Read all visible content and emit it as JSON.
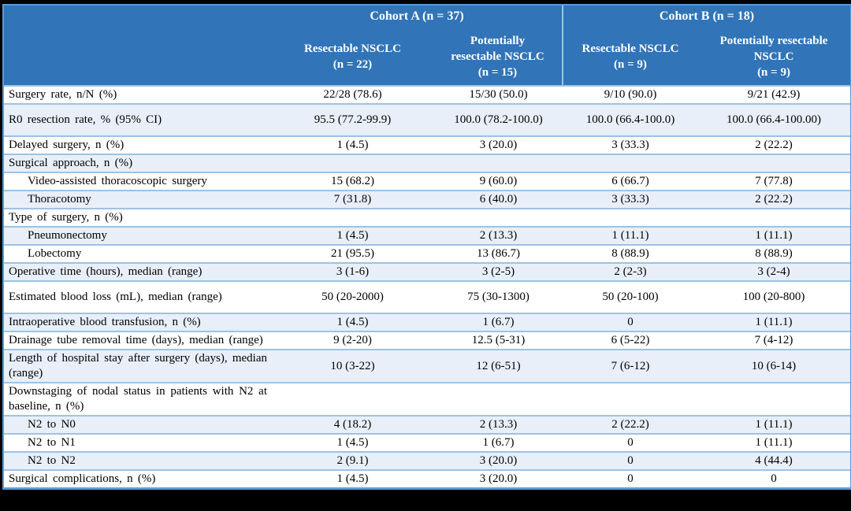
{
  "table": {
    "colors": {
      "header_blue": "#3174B7",
      "header_text": "#FFFFFF",
      "stripe": "#E9EFF8",
      "row_border": "#9CC3E5",
      "outer_border": "#5B9BD5",
      "body_text": "#000000",
      "frame": "#000000"
    },
    "cohorts": [
      {
        "label": "Cohort A (n = 37)"
      },
      {
        "label": "Cohort B (n = 18)"
      }
    ],
    "column_headers": [
      "Resectable NSCLC\n(n = 22)",
      "Potentially\nresectable NSCLC\n(n = 15)",
      "Resectable NSCLC\n(n = 9)",
      "Potentially resectable\nNSCLC\n(n = 9)"
    ],
    "rows": [
      {
        "label": "Surgery rate, n/N (%)",
        "indent": false,
        "tall": false,
        "values": [
          "22/28 (78.6)",
          "15/30 (50.0)",
          "9/10 (90.0)",
          "9/21 (42.9)"
        ]
      },
      {
        "label": "R0 resection rate, % (95% CI)",
        "indent": false,
        "tall": true,
        "values": [
          "95.5 (77.2-99.9)",
          "100.0 (78.2-100.0)",
          "100.0 (66.4-100.0)",
          "100.0 (66.4-100.00)"
        ]
      },
      {
        "label": "Delayed surgery, n (%)",
        "indent": false,
        "tall": false,
        "values": [
          "1 (4.5)",
          "3 (20.0)",
          "3 (33.3)",
          "2 (22.2)"
        ]
      },
      {
        "label": "Surgical approach, n (%)",
        "indent": false,
        "tall": false,
        "values": [
          "",
          "",
          "",
          ""
        ]
      },
      {
        "label": "Video-assisted thoracoscopic surgery",
        "indent": true,
        "tall": false,
        "values": [
          "15 (68.2)",
          "9 (60.0)",
          "6 (66.7)",
          "7 (77.8)"
        ]
      },
      {
        "label": "Thoracotomy",
        "indent": true,
        "tall": false,
        "values": [
          "7 (31.8)",
          "6 (40.0)",
          "3 (33.3)",
          "2 (22.2)"
        ]
      },
      {
        "label": "Type of surgery, n (%)",
        "indent": false,
        "tall": false,
        "values": [
          "",
          "",
          "",
          ""
        ]
      },
      {
        "label": "Pneumonectomy",
        "indent": true,
        "tall": false,
        "values": [
          "1 (4.5)",
          "2 (13.3)",
          "1 (11.1)",
          "1 (11.1)"
        ]
      },
      {
        "label": "Lobectomy",
        "indent": true,
        "tall": false,
        "values": [
          "21 (95.5)",
          "13 (86.7)",
          "8 (88.9)",
          "8 (88.9)"
        ]
      },
      {
        "label": "Operative time (hours), median (range)",
        "indent": false,
        "tall": false,
        "values": [
          "3 (1-6)",
          "3 (2-5)",
          "2 (2-3)",
          "3 (2-4)"
        ]
      },
      {
        "label": "Estimated blood loss (mL), median (range)",
        "indent": false,
        "tall": true,
        "values": [
          "50 (20-2000)",
          "75 (30-1300)",
          "50 (20-100)",
          "100 (20-800)"
        ]
      },
      {
        "label": "Intraoperative blood transfusion, n (%)",
        "indent": false,
        "tall": false,
        "values": [
          "1 (4.5)",
          "1 (6.7)",
          "0",
          "1 (11.1)"
        ]
      },
      {
        "label": "Drainage tube removal time (days), median (range)",
        "indent": false,
        "tall": false,
        "values": [
          "9 (2-20)",
          "12.5 (5-31)",
          "6 (5-22)",
          "7 (4-12)"
        ]
      },
      {
        "label": "Length of hospital stay after surgery (days), median (range)",
        "indent": false,
        "tall": false,
        "values": [
          "10 (3-22)",
          "12 (6-51)",
          "7 (6-12)",
          "10 (6-14)"
        ]
      },
      {
        "label": "Downstaging of nodal status in patients with N2 at baseline, n (%)",
        "indent": false,
        "tall": false,
        "values": [
          "",
          "",
          "",
          ""
        ]
      },
      {
        "label": "N2 to N0",
        "indent": true,
        "tall": false,
        "values": [
          "4 (18.2)",
          "2 (13.3)",
          "2 (22.2)",
          "1 (11.1)"
        ]
      },
      {
        "label": "N2 to N1",
        "indent": true,
        "tall": false,
        "values": [
          "1 (4.5)",
          "1 (6.7)",
          "0",
          "1 (11.1)"
        ]
      },
      {
        "label": "N2 to N2",
        "indent": true,
        "tall": false,
        "values": [
          "2 (9.1)",
          "3 (20.0)",
          "0",
          "4 (44.4)"
        ]
      },
      {
        "label": "Surgical complications, n (%)",
        "indent": false,
        "tall": false,
        "values": [
          "1 (4.5)",
          "3 (20.0)",
          "0",
          "0"
        ]
      }
    ]
  }
}
